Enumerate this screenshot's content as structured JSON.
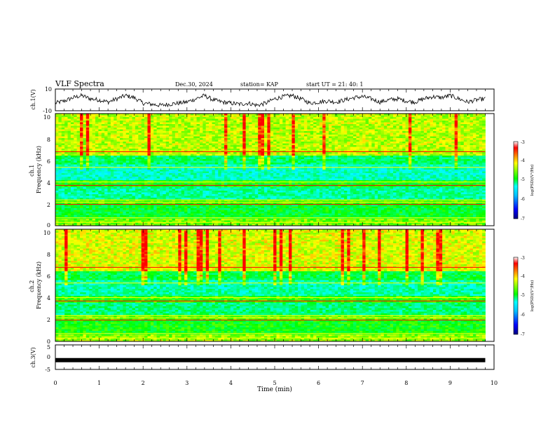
{
  "header": {
    "title": "VLF Spectra",
    "date": "Dec.30, 2024",
    "station": "station= KAP",
    "start": "start UT =  21: 40: 1"
  },
  "chart_data": [
    {
      "type": "line",
      "panel": "ch1-waveform",
      "ylabel": "ch.1(V)",
      "ylim": [
        -10,
        10
      ],
      "yticks": [
        "10",
        "-10"
      ],
      "xlim": [
        0,
        10
      ],
      "x": [
        0,
        0.2,
        0.4,
        0.6,
        0.8,
        1.0,
        1.2,
        1.4,
        1.6,
        1.8,
        2.0,
        2.2,
        2.4,
        2.6,
        2.8,
        3.0,
        3.2,
        3.4,
        3.6,
        3.8,
        4.0,
        4.2,
        4.4,
        4.6,
        4.8,
        5.0,
        5.2,
        5.4,
        5.6,
        5.8,
        6.0,
        6.2,
        6.4,
        6.6,
        6.8,
        7.0,
        7.2,
        7.4,
        7.6,
        7.8,
        8.0,
        8.2,
        8.4,
        8.6,
        8.8,
        9.0,
        9.2,
        9.4,
        9.6,
        9.8
      ],
      "y": [
        -3,
        -1,
        2,
        4,
        1,
        0,
        -2,
        1,
        4,
        2,
        -3,
        -4,
        -5,
        -4,
        -3,
        -2,
        1,
        4,
        0,
        -2,
        -3,
        -4,
        -3,
        -5,
        -3,
        1,
        3,
        4,
        1,
        -3,
        -2,
        -1,
        -2,
        0,
        2,
        3,
        1,
        -2,
        0,
        1,
        -1,
        -2,
        1,
        3,
        2,
        4,
        1,
        -2,
        0,
        1
      ]
    },
    {
      "type": "heatmap",
      "panel": "ch1-spectrogram",
      "ylabel": "ch.1 Frequency (kHz)",
      "ylim": [
        0,
        10
      ],
      "yticks": [
        "0",
        "2",
        "4",
        "6",
        "8",
        "10"
      ],
      "xlim": [
        0,
        10
      ],
      "colorbar": {
        "min": -7,
        "max": -3,
        "ticks": [
          "-3",
          "-4",
          "-5",
          "-6",
          "-7"
        ],
        "label": "log(PSD)(V²/Hz)"
      }
    },
    {
      "type": "heatmap",
      "panel": "ch2-spectrogram",
      "ylabel": "ch.2 Frequency (kHz)",
      "ylim": [
        0,
        10
      ],
      "yticks": [
        "0",
        "2",
        "4",
        "6",
        "8",
        "10"
      ],
      "xlim": [
        0,
        10
      ],
      "colorbar": {
        "min": -7,
        "max": -3,
        "ticks": [
          "-3",
          "-4",
          "-5",
          "-6",
          "-7"
        ],
        "label": "log(PSD)(V²/Hz)"
      }
    },
    {
      "type": "line",
      "panel": "ch3-waveform",
      "ylabel": "ch.3(V)",
      "ylim": [
        -5,
        5
      ],
      "yticks": [
        "5",
        "0",
        "-5"
      ],
      "xlim": [
        0,
        10
      ],
      "x": [
        0,
        9.8
      ],
      "y": [
        -1.2,
        -1.2
      ]
    }
  ],
  "xaxis": {
    "label": "Time (min)",
    "ticks": [
      "0",
      "1",
      "2",
      "3",
      "4",
      "5",
      "6",
      "7",
      "8",
      "9",
      "10"
    ]
  },
  "colors": {
    "colormap": [
      "#000080",
      "#0000ff",
      "#00bfff",
      "#00ffff",
      "#00ff7f",
      "#00ff00",
      "#7fff00",
      "#ffff00",
      "#ff8000",
      "#ff0000",
      "#ffffff"
    ]
  }
}
